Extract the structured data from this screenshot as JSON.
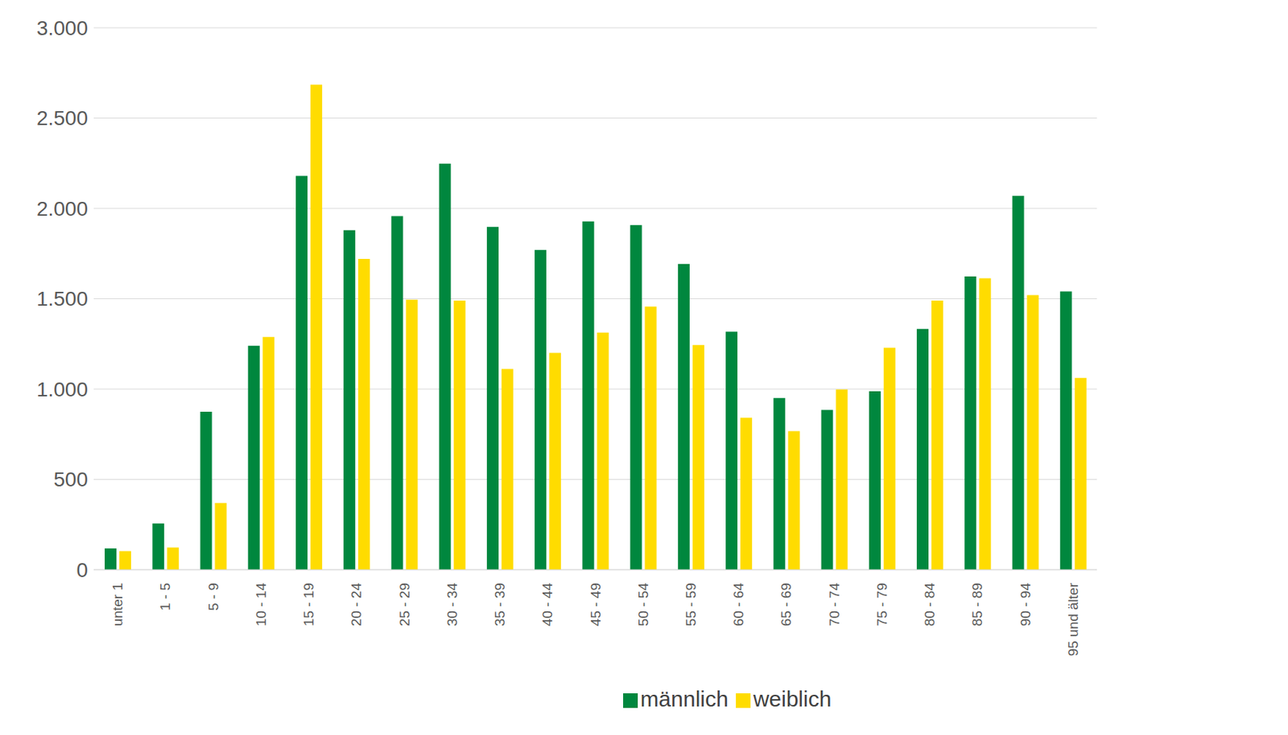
{
  "chart_data": {
    "type": "bar",
    "categories": [
      "unter 1",
      "1 - 5",
      "5 - 9",
      "10 - 14",
      "15 - 19",
      "20 - 24",
      "25 - 29",
      "30 - 34",
      "35 - 39",
      "40 - 44",
      "45 - 49",
      "50 - 54",
      "55 - 59",
      "60 - 64",
      "65 - 69",
      "70 - 74",
      "75 - 79",
      "80 - 84",
      "85 - 89",
      "90 - 94",
      "95 und älter"
    ],
    "series": [
      {
        "name": "männlich",
        "color": "#00873e",
        "values": [
          118,
          256,
          875,
          1240,
          2180,
          1880,
          1957,
          2248,
          1898,
          1770,
          1928,
          1908,
          1692,
          1318,
          950,
          885,
          988,
          1333,
          1623,
          2070,
          1540
        ]
      },
      {
        "name": "weiblich",
        "color": "#ffdc00",
        "values": [
          103,
          123,
          369,
          1288,
          2685,
          1721,
          1495,
          1490,
          1111,
          1200,
          1313,
          1456,
          1244,
          841,
          767,
          998,
          1229,
          1490,
          1613,
          1520,
          1062
        ]
      }
    ],
    "ylim": [
      0,
      3000
    ],
    "yticks": [
      0,
      500,
      {
        "value": 1000,
        "label": "1.000"
      },
      {
        "value": 1500,
        "label": "1.500"
      },
      {
        "value": 2000,
        "label": "2.000"
      },
      {
        "value": 2500,
        "label": "2.500"
      },
      {
        "value": 3000,
        "label": "3.000"
      }
    ],
    "grid": true,
    "legend": "bottom"
  }
}
